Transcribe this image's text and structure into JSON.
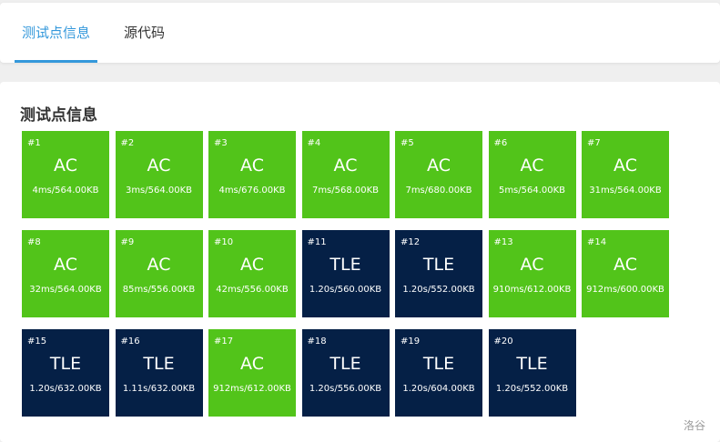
{
  "tabs": [
    {
      "label": "测试点信息",
      "active": true
    },
    {
      "label": "源代码",
      "active": false
    }
  ],
  "section_title": "测试点信息",
  "colors": {
    "accent": "#3498db",
    "AC": "#52c41a",
    "TLE": "#052046"
  },
  "test_cases": [
    {
      "id": "#1",
      "status": "AC",
      "detail": "4ms/564.00KB"
    },
    {
      "id": "#2",
      "status": "AC",
      "detail": "3ms/564.00KB"
    },
    {
      "id": "#3",
      "status": "AC",
      "detail": "4ms/676.00KB"
    },
    {
      "id": "#4",
      "status": "AC",
      "detail": "7ms/568.00KB"
    },
    {
      "id": "#5",
      "status": "AC",
      "detail": "7ms/680.00KB"
    },
    {
      "id": "#6",
      "status": "AC",
      "detail": "5ms/564.00KB"
    },
    {
      "id": "#7",
      "status": "AC",
      "detail": "31ms/564.00KB"
    },
    {
      "id": "#8",
      "status": "AC",
      "detail": "32ms/564.00KB"
    },
    {
      "id": "#9",
      "status": "AC",
      "detail": "85ms/556.00KB"
    },
    {
      "id": "#10",
      "status": "AC",
      "detail": "42ms/556.00KB"
    },
    {
      "id": "#11",
      "status": "TLE",
      "detail": "1.20s/560.00KB"
    },
    {
      "id": "#12",
      "status": "TLE",
      "detail": "1.20s/552.00KB"
    },
    {
      "id": "#13",
      "status": "AC",
      "detail": "910ms/612.00KB"
    },
    {
      "id": "#14",
      "status": "AC",
      "detail": "912ms/600.00KB"
    },
    {
      "id": "#15",
      "status": "TLE",
      "detail": "1.20s/632.00KB"
    },
    {
      "id": "#16",
      "status": "TLE",
      "detail": "1.11s/632.00KB"
    },
    {
      "id": "#17",
      "status": "AC",
      "detail": "912ms/612.00KB"
    },
    {
      "id": "#18",
      "status": "TLE",
      "detail": "1.20s/556.00KB"
    },
    {
      "id": "#19",
      "status": "TLE",
      "detail": "1.20s/604.00KB"
    },
    {
      "id": "#20",
      "status": "TLE",
      "detail": "1.20s/552.00KB"
    }
  ],
  "watermark": "洛谷"
}
